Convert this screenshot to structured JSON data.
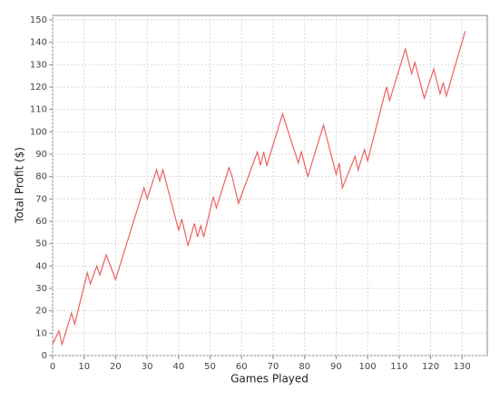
{
  "chart_data": {
    "type": "line",
    "x_label": "Games Played",
    "y_label": "Total Profit ($)",
    "x": [
      0,
      2,
      3,
      6,
      7,
      11,
      12,
      14,
      15,
      17,
      20,
      29,
      30,
      33,
      34,
      35,
      40,
      41,
      43,
      45,
      46,
      47,
      48,
      51,
      52,
      56,
      57,
      59,
      65,
      66,
      67,
      68,
      73,
      78,
      79,
      81,
      86,
      90,
      91,
      92,
      96,
      97,
      99,
      100,
      106,
      107,
      112,
      114,
      115,
      118,
      121,
      123,
      124,
      125,
      131
    ],
    "series": [
      {
        "color": "#f06060",
        "values": [
          5,
          11,
          5,
          19,
          14,
          37,
          32,
          40,
          36,
          45,
          34,
          75,
          70,
          83,
          78,
          83,
          56,
          61,
          49,
          59,
          53,
          58,
          53,
          71,
          66,
          84,
          80,
          68,
          91,
          85,
          91,
          85,
          108,
          86,
          91,
          80,
          103,
          81,
          86,
          75,
          89,
          83,
          92,
          87,
          120,
          114,
          137,
          126,
          131,
          115,
          128,
          117,
          122,
          116,
          145
        ]
      }
    ],
    "xlim": [
      0,
      138
    ],
    "ylim": [
      0,
      152
    ],
    "xticks": [
      0,
      10,
      20,
      30,
      40,
      50,
      60,
      70,
      80,
      90,
      100,
      110,
      120,
      130
    ],
    "yticks": [
      0,
      10,
      20,
      30,
      40,
      50,
      60,
      70,
      80,
      90,
      100,
      110,
      120,
      130,
      140,
      150
    ],
    "grid": true
  }
}
